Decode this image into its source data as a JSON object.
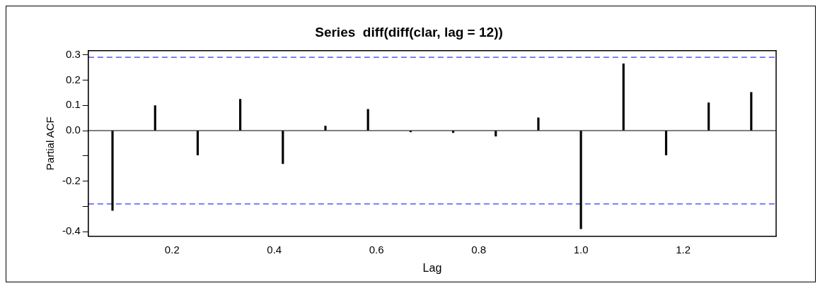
{
  "chart_data": {
    "type": "bar",
    "title": "Series  diff(diff(clar, lag = 12))",
    "xlabel": "Lag",
    "ylabel": "Partial ACF",
    "x": [
      0.0833,
      0.1667,
      0.25,
      0.3333,
      0.4167,
      0.5,
      0.5833,
      0.6667,
      0.75,
      0.8333,
      0.9167,
      1.0,
      1.0833,
      1.1667,
      1.25,
      1.3333
    ],
    "values": [
      -0.316,
      0.099,
      -0.097,
      0.124,
      -0.131,
      0.018,
      0.084,
      -0.005,
      -0.008,
      -0.022,
      0.051,
      -0.388,
      0.264,
      -0.097,
      0.11,
      0.151
    ],
    "color": "#000000",
    "xlim": [
      0.036,
      1.382
    ],
    "xticks": [
      0.2,
      0.4,
      0.6,
      0.8,
      {
        "value": 1,
        "label": "1.0"
      },
      1.2
    ],
    "ylim": [
      -0.418,
      0.316
    ],
    "yticks": [
      0.3,
      0.2,
      0.1,
      {
        "value": 0,
        "label": "0.0"
      },
      {
        "value": -0.1,
        "label": null
      },
      -0.2,
      {
        "value": -0.3,
        "label": null
      },
      -0.4
    ],
    "ref_lines": [
      {
        "axis": "y",
        "value": 0.29,
        "color": "#0000ff",
        "line_style": "dashed"
      },
      {
        "axis": "y",
        "value": -0.29,
        "color": "#0000ff",
        "line_style": "dashed"
      },
      {
        "axis": "y",
        "value": 0,
        "color": "#000000",
        "line_style": "solid"
      }
    ],
    "grid": false,
    "legend": false
  }
}
